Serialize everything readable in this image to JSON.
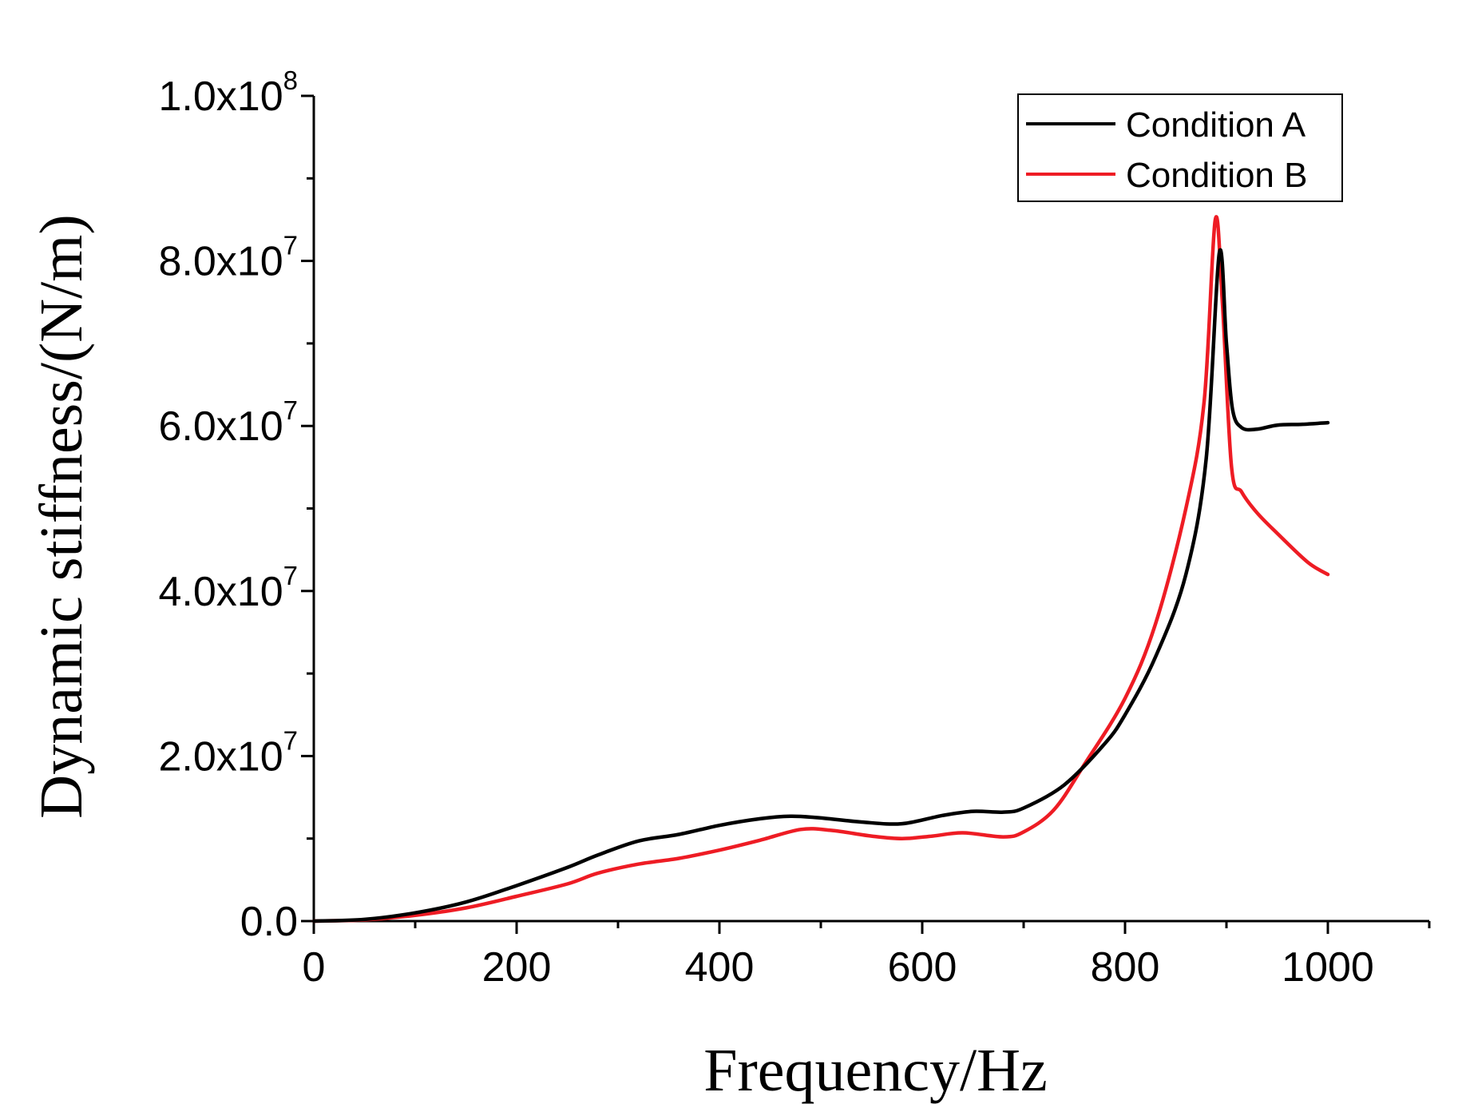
{
  "chart_data": {
    "type": "line",
    "title": "",
    "xlabel": "Frequency/Hz",
    "ylabel": "Dynamic stiffness/(N/m)",
    "xlim": [
      0,
      1100
    ],
    "ylim": [
      0,
      100000000
    ],
    "x_ticks": [
      {
        "value": 0,
        "label": "0"
      },
      {
        "value": 200,
        "label": "200"
      },
      {
        "value": 400,
        "label": "400"
      },
      {
        "value": 600,
        "label": "600"
      },
      {
        "value": 800,
        "label": "800"
      },
      {
        "value": 1000,
        "label": "1000"
      }
    ],
    "y_ticks": [
      {
        "value": 0,
        "mant": "0.0",
        "exp": ""
      },
      {
        "value": 20000000,
        "mant": "2.0x10",
        "exp": "7"
      },
      {
        "value": 40000000,
        "mant": "4.0x10",
        "exp": "7"
      },
      {
        "value": 60000000,
        "mant": "6.0x10",
        "exp": "7"
      },
      {
        "value": 80000000,
        "mant": "8.0x10",
        "exp": "7"
      },
      {
        "value": 100000000,
        "mant": "1.0x10",
        "exp": "8"
      }
    ],
    "legend_position": "top-right",
    "grid": false,
    "series": [
      {
        "name": "Condition A",
        "color": "#000000",
        "points": [
          [
            0,
            0
          ],
          [
            50,
            200000
          ],
          [
            100,
            1000000
          ],
          [
            150,
            2300000
          ],
          [
            200,
            4300000
          ],
          [
            250,
            6500000
          ],
          [
            280,
            8000000
          ],
          [
            320,
            9700000
          ],
          [
            360,
            10500000
          ],
          [
            400,
            11600000
          ],
          [
            440,
            12400000
          ],
          [
            470,
            12700000
          ],
          [
            500,
            12500000
          ],
          [
            540,
            12000000
          ],
          [
            580,
            11800000
          ],
          [
            620,
            12800000
          ],
          [
            650,
            13300000
          ],
          [
            680,
            13200000
          ],
          [
            700,
            13700000
          ],
          [
            740,
            16500000
          ],
          [
            780,
            21500000
          ],
          [
            800,
            25000000
          ],
          [
            830,
            32000000
          ],
          [
            860,
            42000000
          ],
          [
            880,
            56000000
          ],
          [
            893,
            81000000
          ],
          [
            900,
            70000000
          ],
          [
            906,
            62000000
          ],
          [
            915,
            59800000
          ],
          [
            930,
            59600000
          ],
          [
            950,
            60100000
          ],
          [
            975,
            60200000
          ],
          [
            1000,
            60400000
          ]
        ]
      },
      {
        "name": "Condition B",
        "color": "#ee1c24",
        "points": [
          [
            0,
            0
          ],
          [
            50,
            150000
          ],
          [
            100,
            700000
          ],
          [
            150,
            1600000
          ],
          [
            200,
            3000000
          ],
          [
            250,
            4500000
          ],
          [
            280,
            5800000
          ],
          [
            320,
            6900000
          ],
          [
            360,
            7600000
          ],
          [
            400,
            8600000
          ],
          [
            440,
            9800000
          ],
          [
            480,
            11100000
          ],
          [
            510,
            11000000
          ],
          [
            550,
            10300000
          ],
          [
            580,
            10000000
          ],
          [
            610,
            10300000
          ],
          [
            640,
            10700000
          ],
          [
            680,
            10200000
          ],
          [
            700,
            10800000
          ],
          [
            730,
            13500000
          ],
          [
            760,
            19000000
          ],
          [
            800,
            27000000
          ],
          [
            830,
            36000000
          ],
          [
            860,
            50000000
          ],
          [
            878,
            63000000
          ],
          [
            889,
            85000000
          ],
          [
            896,
            75000000
          ],
          [
            905,
            55000000
          ],
          [
            915,
            52000000
          ],
          [
            930,
            49500000
          ],
          [
            950,
            47000000
          ],
          [
            980,
            43500000
          ],
          [
            1000,
            42000000
          ]
        ]
      }
    ]
  }
}
